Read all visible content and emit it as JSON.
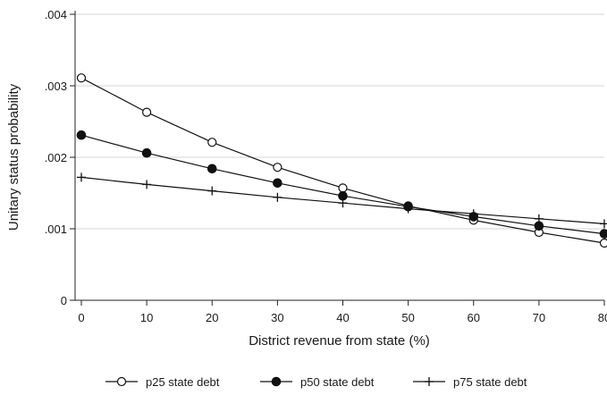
{
  "chart_data": {
    "type": "line",
    "xlabel": "District revenue from state (%)",
    "ylabel": "Unitary status probability",
    "x": [
      0,
      10,
      20,
      30,
      40,
      50,
      60,
      70,
      80
    ],
    "xlim": [
      0,
      80
    ],
    "ylim": [
      0,
      0.004
    ],
    "x_ticks": [
      "0",
      "10",
      "20",
      "30",
      "40",
      "50",
      "60",
      "70",
      "80"
    ],
    "y_ticks": [
      "0",
      ".001",
      ".002",
      ".003",
      ".004"
    ],
    "grid": true,
    "legend_position": "bottom",
    "series": [
      {
        "name": "p25 state debt",
        "marker": "hollow-circle",
        "values": [
          0.00311,
          0.00263,
          0.00221,
          0.00186,
          0.00157,
          0.00132,
          0.00112,
          0.00095,
          0.0008
        ]
      },
      {
        "name": "p50 state debt",
        "marker": "filled-circle",
        "values": [
          0.00231,
          0.00206,
          0.00184,
          0.00164,
          0.00146,
          0.00131,
          0.00117,
          0.00104,
          0.00093
        ]
      },
      {
        "name": "p75 state debt",
        "marker": "plus",
        "values": [
          0.00172,
          0.00162,
          0.00153,
          0.00144,
          0.00136,
          0.00128,
          0.00121,
          0.00114,
          0.00107
        ]
      }
    ]
  }
}
